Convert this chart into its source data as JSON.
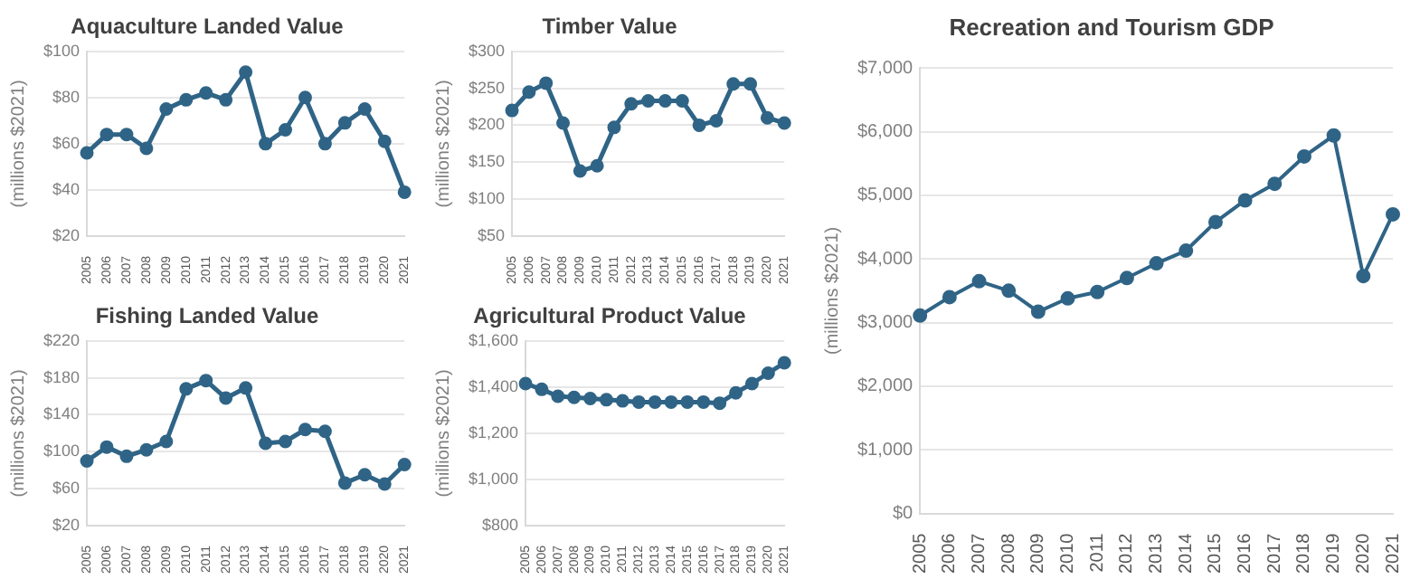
{
  "chart_data": [
    {
      "type": "line",
      "title": "Aquaculture Landed Value",
      "ylabel": "(millions $2021)",
      "categories": [
        "2005",
        "2006",
        "2007",
        "2008",
        "2009",
        "2010",
        "2011",
        "2012",
        "2013",
        "2014",
        "2015",
        "2016",
        "2017",
        "2018",
        "2019",
        "2020",
        "2021"
      ],
      "series": [
        {
          "color": "#2f6486",
          "values": [
            56,
            64,
            64,
            58,
            75,
            79,
            82,
            79,
            91,
            60,
            66,
            80,
            60,
            69,
            75,
            61,
            39
          ]
        }
      ],
      "ylim": [
        20,
        100
      ],
      "yticks": [
        {
          "value": 20,
          "label": "$20"
        },
        {
          "value": 40,
          "label": "$40"
        },
        {
          "value": 60,
          "label": "$60"
        },
        {
          "value": 80,
          "label": "$80"
        },
        {
          "value": 100,
          "label": "$100"
        }
      ],
      "grid": "y",
      "marker": "circle",
      "legend": false
    },
    {
      "type": "line",
      "title": "Timber Value",
      "ylabel": "(millions $2021)",
      "categories": [
        "2005",
        "2006",
        "2007",
        "2008",
        "2009",
        "2010",
        "2011",
        "2012",
        "2013",
        "2014",
        "2015",
        "2016",
        "2017",
        "2018",
        "2019",
        "2020",
        "2021"
      ],
      "series": [
        {
          "color": "#2f6486",
          "values": [
            220,
            245,
            257,
            203,
            138,
            145,
            197,
            229,
            233,
            233,
            233,
            200,
            206,
            256,
            256,
            210,
            203
          ]
        }
      ],
      "ylim": [
        50,
        300
      ],
      "yticks": [
        {
          "value": 50,
          "label": "$50"
        },
        {
          "value": 100,
          "label": "$100"
        },
        {
          "value": 150,
          "label": "$150"
        },
        {
          "value": 200,
          "label": "$200"
        },
        {
          "value": 250,
          "label": "$250"
        },
        {
          "value": 300,
          "label": "$300"
        }
      ],
      "grid": "y",
      "marker": "circle",
      "legend": false
    },
    {
      "type": "line",
      "title": "Recreation and Tourism GDP",
      "ylabel": "(millions $2021)",
      "categories": [
        "2005",
        "2006",
        "2007",
        "2008",
        "2009",
        "2010",
        "2011",
        "2012",
        "2013",
        "2014",
        "2015",
        "2016",
        "2017",
        "2018",
        "2019",
        "2020",
        "2021"
      ],
      "series": [
        {
          "color": "#2f6486",
          "values": [
            3110,
            3400,
            3650,
            3500,
            3170,
            3380,
            3480,
            3700,
            3930,
            4130,
            4580,
            4920,
            5180,
            5610,
            5940,
            3730,
            4700
          ]
        }
      ],
      "ylim": [
        0,
        7000
      ],
      "yticks": [
        {
          "value": 0,
          "label": "$0"
        },
        {
          "value": 1000,
          "label": "$1,000"
        },
        {
          "value": 2000,
          "label": "$2,000"
        },
        {
          "value": 3000,
          "label": "$3,000"
        },
        {
          "value": 4000,
          "label": "$4,000"
        },
        {
          "value": 5000,
          "label": "$5,000"
        },
        {
          "value": 6000,
          "label": "$6,000"
        },
        {
          "value": 7000,
          "label": "$7,000"
        }
      ],
      "grid": "y",
      "marker": "circle",
      "legend": false
    },
    {
      "type": "line",
      "title": "Fishing Landed Value",
      "ylabel": "(millions $2021)",
      "categories": [
        "2005",
        "2006",
        "2007",
        "2008",
        "2009",
        "2010",
        "2011",
        "2012",
        "2013",
        "2014",
        "2015",
        "2016",
        "2017",
        "2018",
        "2019",
        "2020",
        "2021"
      ],
      "series": [
        {
          "color": "#2f6486",
          "values": [
            90,
            105,
            95,
            102,
            111,
            168,
            177,
            158,
            169,
            109,
            111,
            124,
            122,
            66,
            75,
            65,
            86
          ]
        }
      ],
      "ylim": [
        20,
        220
      ],
      "yticks": [
        {
          "value": 20,
          "label": "$20"
        },
        {
          "value": 60,
          "label": "$60"
        },
        {
          "value": 100,
          "label": "$100"
        },
        {
          "value": 140,
          "label": "$140"
        },
        {
          "value": 180,
          "label": "$180"
        },
        {
          "value": 220,
          "label": "$220"
        }
      ],
      "grid": "y",
      "marker": "circle",
      "legend": false
    },
    {
      "type": "line",
      "title": "Agricultural Product Value",
      "ylabel": "(millions $2021)",
      "categories": [
        "2005",
        "2006",
        "2007",
        "2008",
        "2009",
        "2010",
        "2011",
        "2012",
        "2013",
        "2014",
        "2015",
        "2016",
        "2017",
        "2018",
        "2019",
        "2020",
        "2021"
      ],
      "series": [
        {
          "color": "#2f6486",
          "values": [
            1415,
            1390,
            1360,
            1355,
            1350,
            1345,
            1340,
            1335,
            1335,
            1335,
            1335,
            1335,
            1330,
            1375,
            1415,
            1460,
            1505
          ]
        }
      ],
      "ylim": [
        800,
        1600
      ],
      "yticks": [
        {
          "value": 800,
          "label": "$800"
        },
        {
          "value": 1000,
          "label": "$1,000"
        },
        {
          "value": 1200,
          "label": "$1,200"
        },
        {
          "value": 1400,
          "label": "$1,400"
        },
        {
          "value": 1600,
          "label": "$1,600"
        }
      ],
      "grid": "y",
      "marker": "circle",
      "legend": false
    }
  ]
}
